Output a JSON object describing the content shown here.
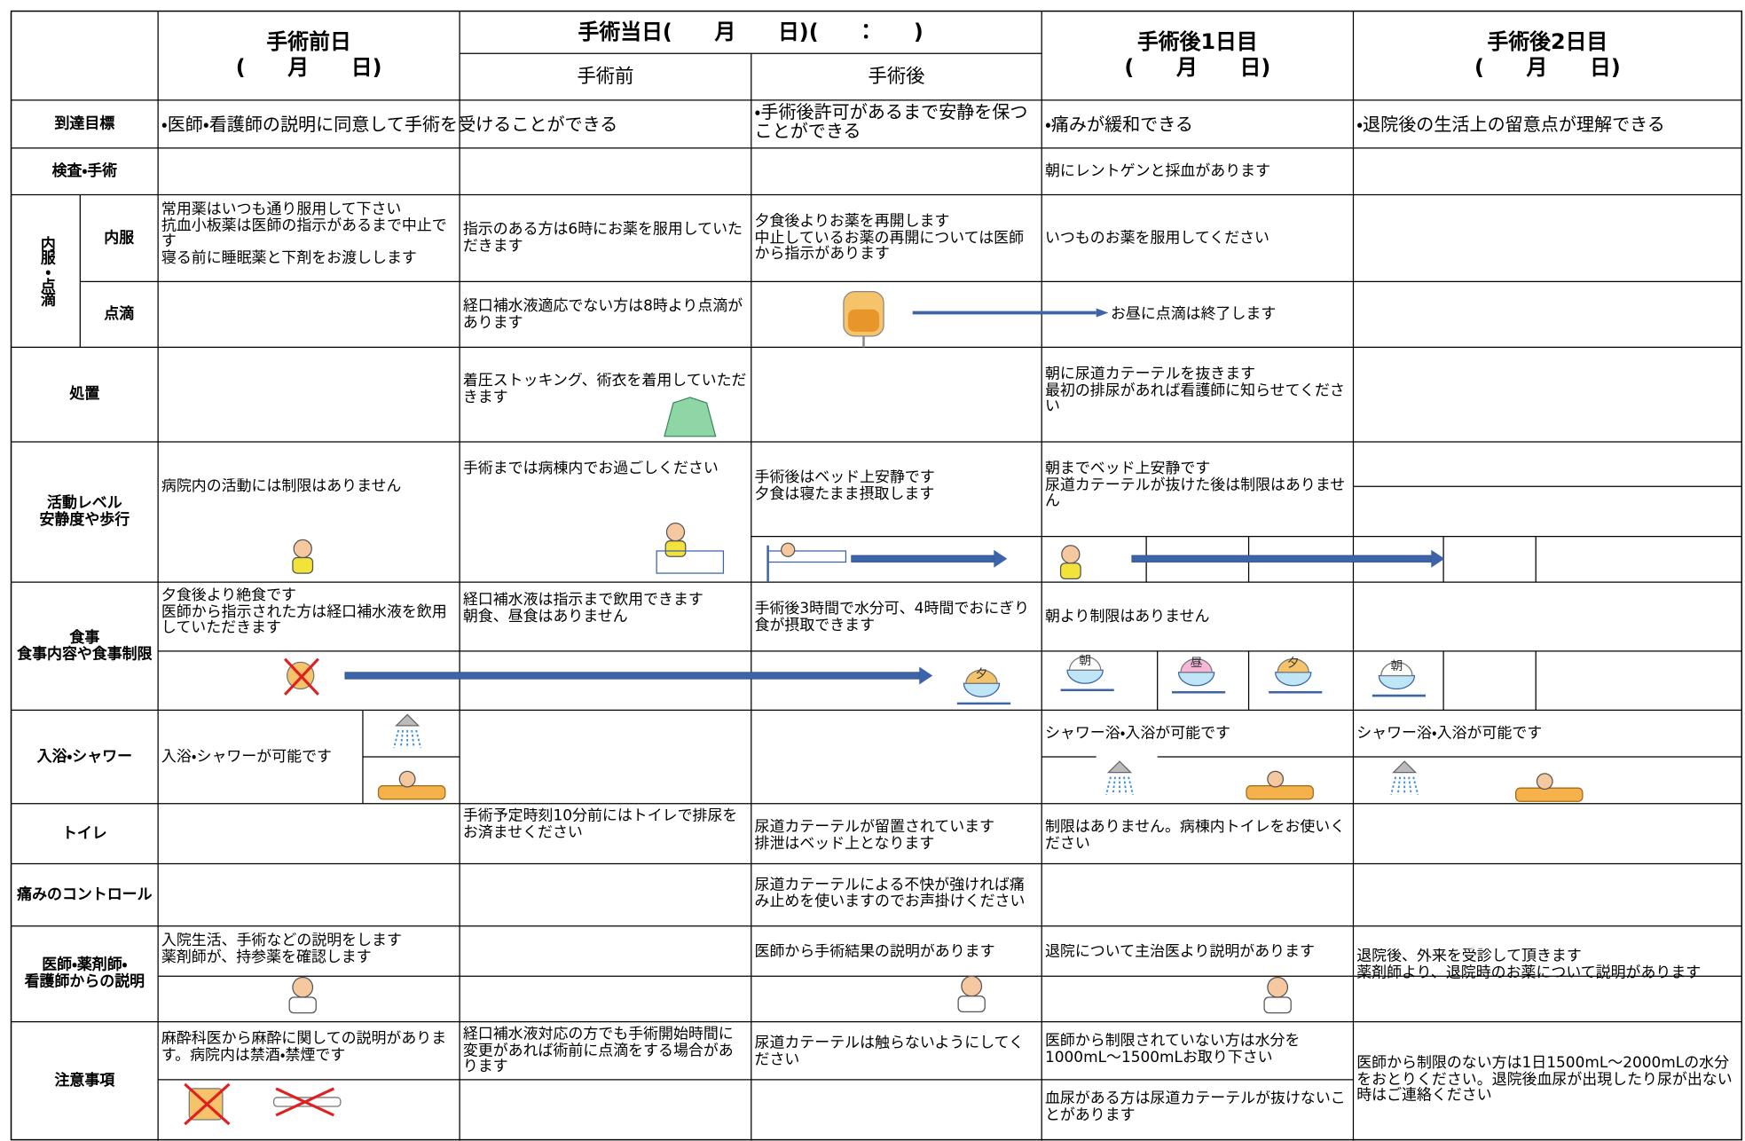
{
  "header": {
    "day_before": [
      "手術前日",
      "(　　月　　日)"
    ],
    "op_day": "手術当日(　　月　　日)(　　：　　)",
    "op_pre": "手術前",
    "op_post": "手術後",
    "post1": [
      "手術後1日目",
      "(　　月　　日)"
    ],
    "post2": [
      "手術後2日目",
      "(　　月　　日)"
    ]
  },
  "rows": {
    "goal": {
      "label": "到達目標",
      "pre_op": "・医師・看護師の説明に同意して手術を受けることができる",
      "post_op": "・手術後許可があるまで安静を保つことができる",
      "post1": "・痛みが緩和できる",
      "post2": "・退院後の生活上の留意点が理解できる"
    },
    "exam": {
      "label": "検査・手術",
      "post1": "朝にレントゲンと採血があります"
    },
    "medication": {
      "group_label": "内服・点滴",
      "internal": {
        "label": "内服",
        "day_before": [
          "常用薬はいつも通り服用して下さい",
          "抗血小板薬は医師の指示があるまで中止です",
          "寝る前に睡眠薬と下剤をお渡しします"
        ],
        "pre_op": "指示のある方は6時にお薬を服用していただきます",
        "post_op": [
          "夕食後よりお薬を再開します",
          "中止しているお薬の再開については医師から指示があります"
        ],
        "post1": "いつものお薬を服用してください"
      },
      "drip": {
        "label": "点滴",
        "pre_op": "経口補水液適応でない方は8時より点滴があります",
        "post1": "お昼に点滴は終了します"
      }
    },
    "treatment": {
      "label": "処置",
      "pre_op": "着圧ストッキング、術衣を着用していただきます",
      "post1": [
        "朝に尿道カテーテルを抜きます",
        "最初の排尿があれば看護師に知らせてください"
      ]
    },
    "activity": {
      "label": [
        "活動レベル",
        "安静度や歩行"
      ],
      "day_before": "病院内の活動には制限はありません",
      "pre_op": "手術までは病棟内でお過ごしください",
      "post_op": [
        "手術後はベッド上安静です",
        "夕食は寝たまま摂取します"
      ],
      "post1": [
        "朝までベッド上安静です",
        "尿道カテーテルが抜けた後は制限はありません"
      ]
    },
    "meal": {
      "label": [
        "食事",
        "食事内容や食事制限"
      ],
      "day_before": [
        "夕食後より絶食です",
        "医師から指示された方は経口補水液を飲用していただきます"
      ],
      "pre_op": [
        "経口補水液は指示まで飲用できます",
        "朝食、昼食はありません"
      ],
      "post_op": "手術後3時間で水分可、4時間でおにぎり食が摂取できます",
      "post1": "朝より制限はありません",
      "icons": {
        "morning": "朝",
        "noon": "昼",
        "evening": "夕"
      }
    },
    "bath": {
      "label": "入浴・シャワー",
      "day_before": "入浴・シャワーが可能です",
      "post1": "シャワー浴・入浴が可能です",
      "post2": "シャワー浴・入浴が可能です"
    },
    "toilet": {
      "label": "トイレ",
      "pre_op": "手術予定時刻10分前にはトイレで排尿をお済ませください",
      "post_op": [
        "尿道カテーテルが留置されています",
        "排泄はベッド上となります"
      ],
      "post1": "制限はありません。病棟内トイレをお使いください"
    },
    "pain": {
      "label": "痛みのコントロール",
      "post_op": "尿道カテーテルによる不快が強ければ痛み止めを使いますのでお声掛けください"
    },
    "explanation": {
      "label": [
        "医師・薬剤師・",
        "看護師からの説明"
      ],
      "day_before": [
        "入院生活、手術などの説明をします",
        "薬剤師が、持参薬を確認します"
      ],
      "post_op": "医師から手術結果の説明があります",
      "post1": "退院について主治医より説明があります",
      "post2": [
        "退院後、外来を受診して頂きます",
        "薬剤師より、退院時のお薬について説明があります"
      ]
    },
    "notes": {
      "label": "注意事項",
      "day_before": "麻酔科医から麻酔に関しての説明があります。病院内は禁酒・禁煙です",
      "pre_op": "経口補水液対応の方でも手術開始時間に変更があれば術前に点滴をする場合があります",
      "post_op": "尿道カテーテルは触らないようにしてください",
      "post1a": "医師から制限されていない方は水分を1000mL～1500mLお取り下さい",
      "post1b": "血尿がある方は尿道カテーテルが抜けないことがあります",
      "post2": "医師から制限のない方は1日1500mL～2000mLの水分をおとりください。退院後血尿が出現したり尿が出ない時はご連絡ください"
    }
  }
}
